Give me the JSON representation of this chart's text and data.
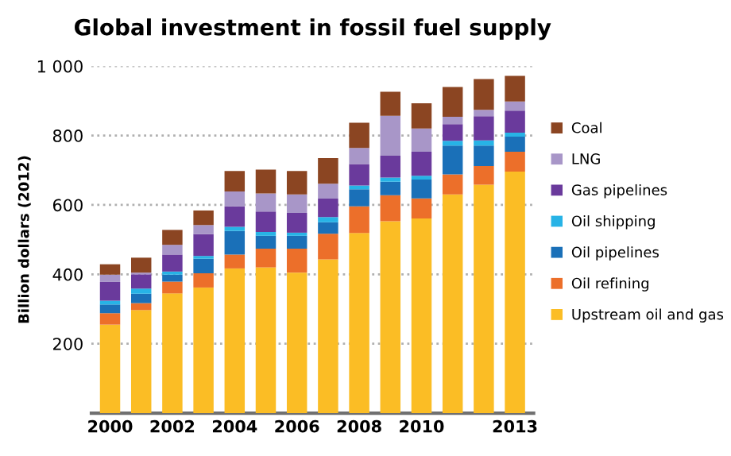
{
  "chart_data": {
    "type": "bar",
    "stacked": true,
    "title": "Global investment in fossil fuel supply",
    "ylabel": "Billion dollars (2012)",
    "categories": [
      "2000",
      null,
      "2002",
      null,
      "2004",
      null,
      "2006",
      null,
      "2008",
      null,
      "2010",
      null,
      null,
      "2013"
    ],
    "series": [
      {
        "name": "Upstream oil and gas",
        "color": "#fbbd25",
        "values": [
          255,
          297,
          345,
          362,
          417,
          420,
          405,
          443,
          519,
          553,
          561,
          630,
          658,
          696
        ]
      },
      {
        "name": "Oil refining",
        "color": "#ec6f2a",
        "values": [
          33,
          20,
          34,
          41,
          40,
          54,
          69,
          74,
          77,
          75,
          58,
          58,
          54,
          57
        ]
      },
      {
        "name": "Oil pipelines",
        "color": "#1a70b8",
        "values": [
          25,
          27,
          20,
          42,
          68,
          37,
          37,
          33,
          49,
          39,
          54,
          83,
          59,
          44
        ]
      },
      {
        "name": "Oil shipping",
        "color": "#27b3e6",
        "values": [
          11,
          15,
          9,
          8,
          12,
          11,
          9,
          15,
          11,
          12,
          11,
          14,
          15,
          11
        ]
      },
      {
        "name": "Gas pipelines",
        "color": "#6a3a9c",
        "values": [
          54,
          41,
          49,
          63,
          59,
          59,
          57,
          53,
          62,
          63,
          69,
          48,
          70,
          64
        ]
      },
      {
        "name": "LNG",
        "color": "#a896c8",
        "values": [
          21,
          5,
          28,
          26,
          43,
          52,
          53,
          43,
          46,
          115,
          67,
          21,
          18,
          26
        ]
      },
      {
        "name": "Coal",
        "color": "#8b4522",
        "values": [
          30,
          43,
          43,
          42,
          59,
          69,
          68,
          74,
          73,
          69,
          73,
          86,
          89,
          74
        ]
      }
    ],
    "ylim": [
      0,
      1000
    ],
    "yticks": [
      200,
      400,
      600,
      800,
      {
        "value": 1000,
        "label": "1 000"
      }
    ],
    "grid": "y",
    "legend": "right"
  }
}
